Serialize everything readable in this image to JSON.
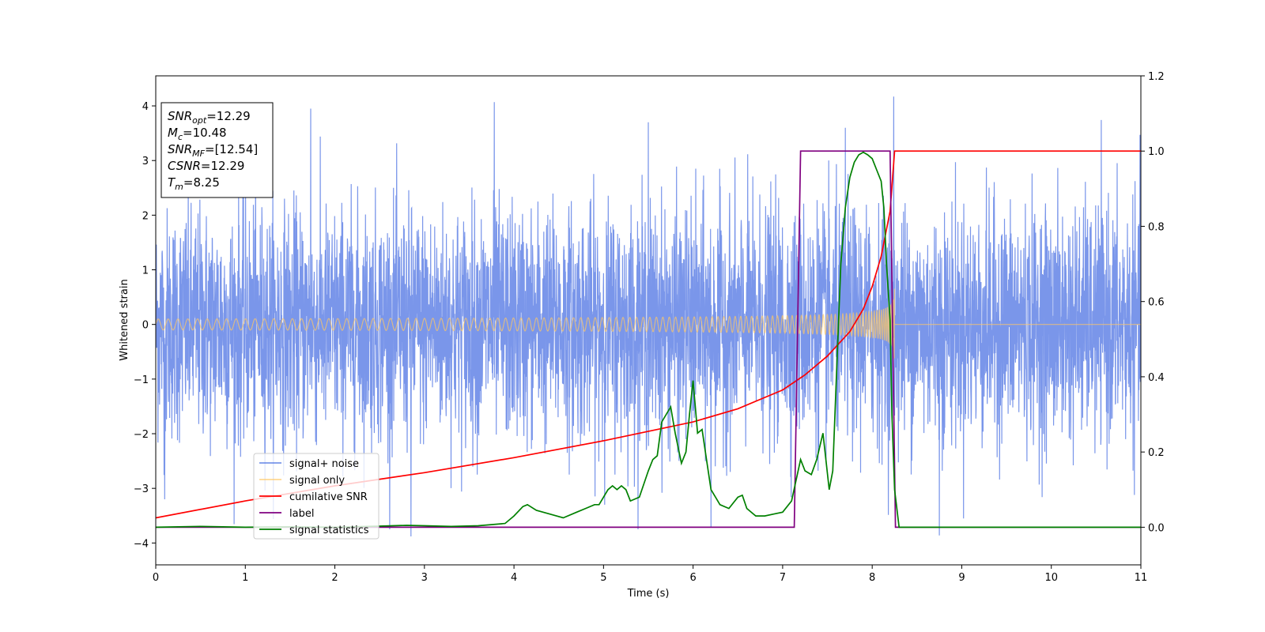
{
  "chart_data": {
    "type": "line",
    "xlabel": "Time (s)",
    "ylabel": "Whitened strain",
    "xlim": [
      0,
      11
    ],
    "ylim": [
      -4.4,
      4.55
    ],
    "y2lim": [
      -0.1,
      1.2
    ],
    "x_ticks": [
      0,
      1,
      2,
      3,
      4,
      5,
      6,
      7,
      8,
      9,
      10,
      11
    ],
    "y_ticks": [
      -4,
      -3,
      -2,
      -1,
      0,
      1,
      2,
      3,
      4
    ],
    "y2_ticks": [
      0.0,
      0.2,
      0.4,
      0.6,
      0.8,
      1.0,
      1.2
    ],
    "legend_position": "lower-left",
    "stats_box": {
      "lines": [
        {
          "main": "SNR",
          "sub": "opt",
          "value": "=12.29"
        },
        {
          "main": "M",
          "sub": "c",
          "value": "=10.48"
        },
        {
          "main": "SNR",
          "sub": "MF",
          "value": "=[12.54]"
        },
        {
          "main": "CSNR",
          "sub": "",
          "value": "=12.29"
        },
        {
          "main": "T",
          "sub": "m",
          "value": "=8.25"
        }
      ]
    },
    "series": [
      {
        "name": "signal+ noise",
        "color": "#4169e1",
        "axis": "left",
        "style": "noise",
        "std": 1.05,
        "spikes": [
          [
            1.73,
            3.95
          ],
          [
            3.78,
            4.07
          ],
          [
            8.24,
            4.17
          ],
          [
            6.2,
            -3.72
          ],
          [
            2.85,
            -3.88
          ],
          [
            8.75,
            -3.86
          ],
          [
            7.7,
            3.6
          ],
          [
            0.1,
            -3.2
          ],
          [
            5.5,
            3.7
          ]
        ]
      },
      {
        "name": "signal only",
        "color": "#ffc864",
        "axis": "left",
        "style": "chirp",
        "t_merge": 8.25,
        "amp_start": 0.05,
        "amp_end": 1.8
      },
      {
        "name": "cumilative SNR",
        "color": "#ff0000",
        "axis": "right",
        "x": [
          0,
          1,
          2,
          3,
          4,
          5,
          6,
          6.5,
          7,
          7.25,
          7.5,
          7.75,
          7.9,
          8.0,
          8.1,
          8.2,
          8.25,
          11
        ],
        "y": [
          0.025,
          0.07,
          0.11,
          0.145,
          0.185,
          0.23,
          0.28,
          0.315,
          0.365,
          0.405,
          0.455,
          0.52,
          0.58,
          0.64,
          0.72,
          0.84,
          1.0,
          1.0
        ]
      },
      {
        "name": "label",
        "color": "#800080",
        "axis": "right",
        "x": [
          0,
          7.13,
          7.2,
          8.2,
          8.26,
          11
        ],
        "y": [
          0,
          0,
          1.0,
          1.0,
          0,
          0
        ]
      },
      {
        "name": "signal statistics",
        "color": "#008000",
        "axis": "right",
        "x": [
          0,
          0.5,
          1,
          1.5,
          2,
          2.5,
          2.8,
          3,
          3.3,
          3.6,
          3.9,
          4.0,
          4.1,
          4.15,
          4.25,
          4.4,
          4.55,
          4.7,
          4.8,
          4.9,
          4.95,
          5.05,
          5.1,
          5.15,
          5.2,
          5.25,
          5.3,
          5.4,
          5.5,
          5.55,
          5.6,
          5.65,
          5.7,
          5.75,
          5.8,
          5.87,
          5.92,
          5.96,
          6.0,
          6.05,
          6.1,
          6.15,
          6.2,
          6.25,
          6.3,
          6.4,
          6.5,
          6.55,
          6.6,
          6.7,
          6.8,
          6.9,
          7.0,
          7.1,
          7.2,
          7.25,
          7.32,
          7.38,
          7.45,
          7.52,
          7.56,
          7.6,
          7.65,
          7.7,
          7.75,
          7.8,
          7.85,
          7.9,
          7.95,
          8.0,
          8.05,
          8.1,
          8.13,
          8.16,
          8.2,
          8.22,
          8.25,
          8.3,
          11
        ],
        "y": [
          0.0,
          0.002,
          0.0,
          0.001,
          0.0,
          0.003,
          0.005,
          0.004,
          0.002,
          0.004,
          0.01,
          0.03,
          0.055,
          0.06,
          0.045,
          0.035,
          0.025,
          0.04,
          0.05,
          0.06,
          0.06,
          0.1,
          0.11,
          0.1,
          0.11,
          0.1,
          0.07,
          0.08,
          0.15,
          0.18,
          0.19,
          0.28,
          0.3,
          0.32,
          0.25,
          0.17,
          0.2,
          0.3,
          0.39,
          0.25,
          0.26,
          0.18,
          0.1,
          0.08,
          0.06,
          0.05,
          0.08,
          0.085,
          0.05,
          0.03,
          0.03,
          0.035,
          0.04,
          0.07,
          0.18,
          0.15,
          0.14,
          0.18,
          0.25,
          0.1,
          0.15,
          0.4,
          0.7,
          0.85,
          0.93,
          0.97,
          0.99,
          0.997,
          0.99,
          0.98,
          0.95,
          0.92,
          0.85,
          0.7,
          0.55,
          0.3,
          0.1,
          0.0,
          0.0
        ]
      }
    ]
  }
}
